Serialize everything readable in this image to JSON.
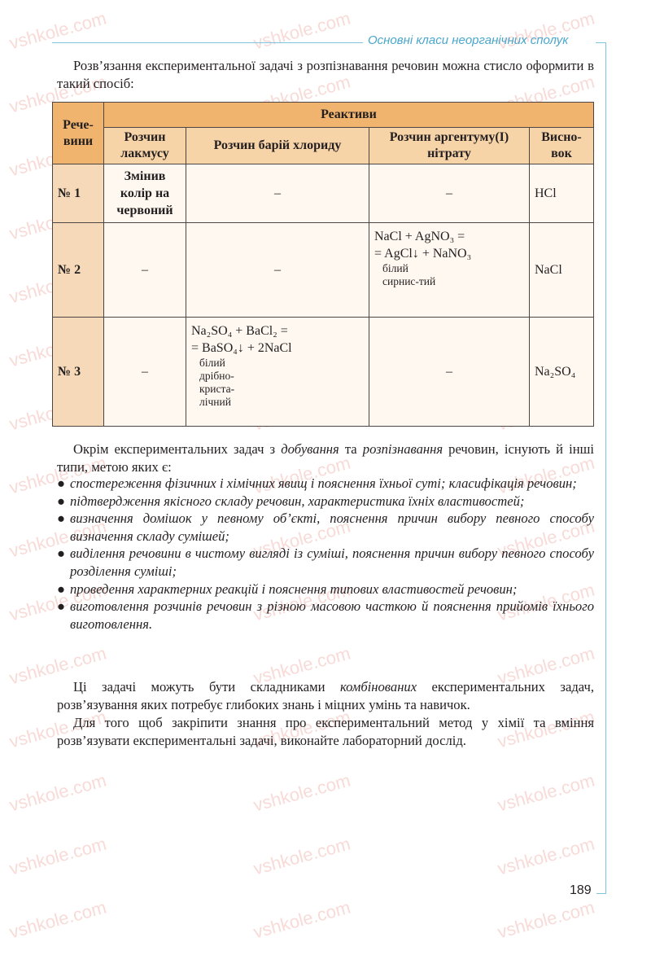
{
  "header": {
    "title": "Основні класи неорганічних сполук"
  },
  "intro": "Розв’язання експериментальної задачі з розпізнавання речовин можна стисло оформити в такий спосіб:",
  "table": {
    "col_substances": "Рече-вини",
    "group_header": "Реактиви",
    "columns": [
      "Розчин лакмусу",
      "Розчин барій хлориду",
      "Розчин аргентуму(I) нітрату",
      "Висно-вок"
    ],
    "rows": [
      {
        "label": "№ 1",
        "litmus": "Змінив колір на червоний",
        "bacl2": "–",
        "agno3": "–",
        "conclusion": "HCl"
      },
      {
        "label": "№ 2",
        "litmus": "–",
        "bacl2": "–",
        "agno3_eq1": "NaCl + AgNO₃ =",
        "agno3_eq2": "= AgCl↓ + NaNO₃",
        "agno3_note": "білий сирнис-тий",
        "conclusion": "NaCl"
      },
      {
        "label": "№ 3",
        "litmus": "–",
        "bacl2_eq1": "Na₂SO₄ + BaCl₂ =",
        "bacl2_eq2": "= BaSO₄↓ + 2NaCl",
        "bacl2_note": "білий дрібно-криста-лічний",
        "agno3": "–",
        "conclusion": "Na₂SO₄"
      }
    ]
  },
  "para2": {
    "a": "Окрім експериментальних задач з ",
    "b": "добування",
    "c": " та ",
    "d": "розпізнавання",
    "e": " речовин, існують й інші типи, метою яких є:"
  },
  "bullets": [
    "спостереження фізичних і хімічних явищ і пояснення їхньої суті; класифікація речовин;",
    "підтвердження якісного складу речовин, характеристика їхніх властивостей;",
    "визначення домішок у певному об’єкті, пояснення причин вибору певного способу визначення складу сумішей;",
    "виділення речовини в чистому вигляді із суміші, пояснення причин вибору певного способу розділення суміші;",
    "проведення характерних реакцій і пояснення типових властивостей речовин;",
    "виготовлення розчинів речовин з різною масовою часткою й пояснення прийомів їхнього виготовлення."
  ],
  "bullet_symbol": "●",
  "para3": {
    "a": "Ці задачі можуть бути складниками ",
    "b": "комбінованих",
    "c": " експериментальних задач, розв’язування яких потребує глибоких знань і міцних умінь та навичок."
  },
  "para4": "Для того щоб закріпити знання про експериментальний метод у хімії та вміння розв’язувати експериментальні задачі, виконайте лабораторний дослід.",
  "page_number": "189",
  "watermark": "vshkole.com",
  "colors": {
    "accent": "#7fc3dc",
    "header_title": "#4aa6cc",
    "table_header": "#f0b46e",
    "table_subheader": "#f7d3a8",
    "row_label": "#f5d9b8"
  }
}
